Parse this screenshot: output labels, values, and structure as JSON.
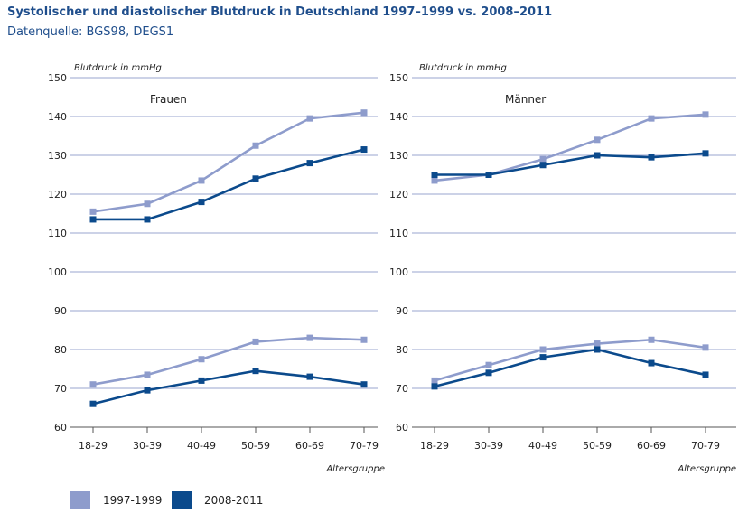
{
  "header": {
    "title": "Systolischer und diastolischer Blutdruck in Deutschland 1997–1999 vs. 2008–2011",
    "subtitle": "Datenquelle: BGS98, DEGS1"
  },
  "legend": [
    {
      "label": "1997-1999",
      "color": "#8e9ccc"
    },
    {
      "label": "2008-2011",
      "color": "#0b4a8c"
    }
  ],
  "chart_data": [
    {
      "type": "line",
      "panel": "Frauen",
      "ylabel": "Blutdruck in mmHg",
      "xlabel": "Altersgruppe",
      "categories": [
        "18-29",
        "30-39",
        "40-49",
        "50-59",
        "60-69",
        "70-79"
      ],
      "ylim": [
        60,
        150
      ],
      "yticks": [
        60,
        70,
        80,
        90,
        100,
        110,
        120,
        130,
        140,
        150
      ],
      "series": [
        {
          "name": "1997-1999 systolisch",
          "group": "1997-1999",
          "values": [
            115.5,
            117.5,
            123.5,
            132.5,
            139.5,
            141
          ]
        },
        {
          "name": "2008-2011 systolisch",
          "group": "2008-2011",
          "values": [
            113.5,
            113.5,
            118,
            124,
            128,
            131.5
          ]
        },
        {
          "name": "1997-1999 diastolisch",
          "group": "1997-1999",
          "values": [
            71,
            73.5,
            77.5,
            82,
            83,
            82.5
          ]
        },
        {
          "name": "2008-2011 diastolisch",
          "group": "2008-2011",
          "values": [
            66,
            69.5,
            72,
            74.5,
            73,
            71
          ]
        }
      ]
    },
    {
      "type": "line",
      "panel": "Männer",
      "ylabel": "Blutdruck in mmHg",
      "xlabel": "Altersgruppe",
      "categories": [
        "18-29",
        "30-39",
        "40-49",
        "50-59",
        "60-69",
        "70-79"
      ],
      "ylim": [
        60,
        150
      ],
      "yticks": [
        60,
        70,
        80,
        90,
        100,
        110,
        120,
        130,
        140,
        150
      ],
      "series": [
        {
          "name": "1997-1999 systolisch",
          "group": "1997-1999",
          "values": [
            123.5,
            125,
            129,
            134,
            139.5,
            140.5
          ]
        },
        {
          "name": "2008-2011 systolisch",
          "group": "2008-2011",
          "values": [
            125,
            125,
            127.5,
            130,
            129.5,
            130.5
          ]
        },
        {
          "name": "1997-1999 diastolisch",
          "group": "1997-1999",
          "values": [
            72,
            76,
            80,
            81.5,
            82.5,
            80.5
          ]
        },
        {
          "name": "2008-2011 diastolisch",
          "group": "2008-2011",
          "values": [
            70.5,
            74,
            78,
            80,
            76.5,
            73.5
          ]
        }
      ]
    }
  ]
}
